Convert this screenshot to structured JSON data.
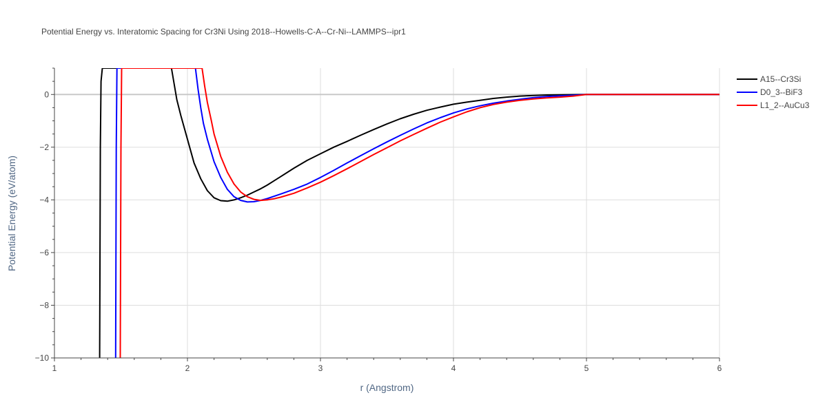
{
  "chart_data": {
    "type": "line",
    "title": "Potential Energy vs. Interatomic Spacing for Cr3Ni Using 2018--Howells-C-A--Cr-Ni--LAMMPS--ipr1",
    "xlabel": "r (Angstrom)",
    "ylabel": "Potential Energy (eV/atom)",
    "xlim": [
      1,
      6
    ],
    "ylim": [
      -10,
      1
    ],
    "xticks": [
      1,
      2,
      3,
      4,
      5,
      6
    ],
    "xtick_labels": [
      "1",
      "2",
      "3",
      "4",
      "5",
      "6"
    ],
    "yticks": [
      -10,
      -8,
      -6,
      -4,
      -2,
      0
    ],
    "ytick_labels": [
      "−10",
      "−8",
      "−6",
      "−4",
      "−2",
      "0"
    ],
    "grid": true,
    "legend_position": "top-right",
    "series": [
      {
        "name": "A15--Cr3Si",
        "color": "#000000",
        "x": [
          1.34,
          1.345,
          1.35,
          1.36,
          1.88,
          1.9,
          1.92,
          1.95,
          2.0,
          2.05,
          2.1,
          2.15,
          2.2,
          2.25,
          2.3,
          2.35,
          2.4,
          2.45,
          2.5,
          2.55,
          2.6,
          2.65,
          2.7,
          2.8,
          2.9,
          3.0,
          3.1,
          3.2,
          3.3,
          3.4,
          3.5,
          3.6,
          3.7,
          3.8,
          3.9,
          4.0,
          4.1,
          4.2,
          4.3,
          4.4,
          4.5,
          4.6,
          4.7,
          4.8,
          4.9,
          5.0,
          5.5,
          6.0
        ],
        "y": [
          -10,
          -2,
          0.5,
          1,
          1,
          0.4,
          -0.2,
          -0.8,
          -1.7,
          -2.6,
          -3.2,
          -3.65,
          -3.92,
          -4.03,
          -4.05,
          -4.0,
          -3.92,
          -3.82,
          -3.7,
          -3.58,
          -3.44,
          -3.28,
          -3.12,
          -2.8,
          -2.5,
          -2.25,
          -2.0,
          -1.78,
          -1.55,
          -1.33,
          -1.12,
          -0.92,
          -0.75,
          -0.6,
          -0.48,
          -0.37,
          -0.29,
          -0.22,
          -0.15,
          -0.1,
          -0.06,
          -0.04,
          -0.02,
          -0.01,
          -0.005,
          0,
          0,
          0
        ]
      },
      {
        "name": "D0_3--BiF3",
        "color": "#0000ff",
        "x": [
          1.46,
          1.465,
          1.47,
          2.06,
          2.08,
          2.1,
          2.12,
          2.15,
          2.2,
          2.25,
          2.3,
          2.35,
          2.4,
          2.45,
          2.5,
          2.55,
          2.6,
          2.7,
          2.8,
          2.9,
          3.0,
          3.1,
          3.2,
          3.3,
          3.4,
          3.5,
          3.6,
          3.7,
          3.8,
          3.9,
          4.0,
          4.1,
          4.2,
          4.3,
          4.4,
          4.5,
          4.6,
          4.7,
          4.8,
          4.9,
          5.0,
          5.5,
          6.0
        ],
        "y": [
          -10,
          -2,
          1,
          1,
          0.2,
          -0.5,
          -1.1,
          -1.7,
          -2.55,
          -3.15,
          -3.6,
          -3.88,
          -4.02,
          -4.08,
          -4.07,
          -4.02,
          -3.95,
          -3.78,
          -3.6,
          -3.4,
          -3.15,
          -2.88,
          -2.6,
          -2.33,
          -2.06,
          -1.8,
          -1.55,
          -1.31,
          -1.08,
          -0.88,
          -0.7,
          -0.55,
          -0.43,
          -0.33,
          -0.25,
          -0.18,
          -0.12,
          -0.08,
          -0.05,
          -0.03,
          0,
          0,
          0
        ]
      },
      {
        "name": "L1_2--AuCu3",
        "color": "#ff0000",
        "x": [
          1.495,
          1.5,
          1.505,
          2.11,
          2.13,
          2.15,
          2.18,
          2.2,
          2.25,
          2.3,
          2.35,
          2.4,
          2.45,
          2.5,
          2.55,
          2.6,
          2.65,
          2.7,
          2.8,
          2.9,
          3.0,
          3.1,
          3.2,
          3.3,
          3.4,
          3.5,
          3.6,
          3.7,
          3.8,
          3.9,
          4.0,
          4.1,
          4.2,
          4.3,
          4.4,
          4.5,
          4.6,
          4.7,
          4.8,
          4.9,
          5.0,
          5.5,
          6.0
        ],
        "y": [
          -10,
          -2,
          1,
          1,
          0.3,
          -0.3,
          -1.0,
          -1.5,
          -2.35,
          -2.95,
          -3.4,
          -3.7,
          -3.88,
          -3.98,
          -4.02,
          -4.0,
          -3.96,
          -3.9,
          -3.75,
          -3.55,
          -3.33,
          -3.08,
          -2.82,
          -2.55,
          -2.28,
          -2.02,
          -1.76,
          -1.52,
          -1.28,
          -1.05,
          -0.85,
          -0.66,
          -0.5,
          -0.38,
          -0.29,
          -0.22,
          -0.17,
          -0.13,
          -0.1,
          -0.06,
          0,
          0,
          0
        ]
      }
    ]
  }
}
